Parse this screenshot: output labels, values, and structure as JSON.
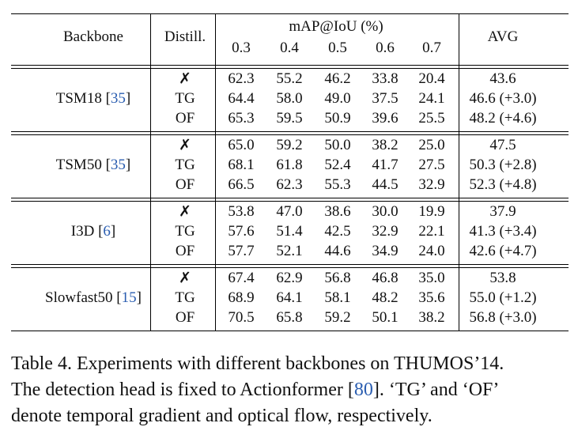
{
  "table": {
    "header": {
      "backbone": "Backbone",
      "distill": "Distill.",
      "metric": "mAP@IoU (%)",
      "thresholds": [
        "0.3",
        "0.4",
        "0.5",
        "0.6",
        "0.7"
      ],
      "avg": "AVG"
    },
    "groups": [
      {
        "backbone": [
          "TSM18 [",
          "35",
          "]"
        ],
        "rows": [
          {
            "distill": "✗",
            "values": [
              "62.3",
              "55.2",
              "46.2",
              "33.8",
              "20.4"
            ],
            "avg": "43.6"
          },
          {
            "distill": "TG",
            "values": [
              "64.4",
              "58.0",
              "49.0",
              "37.5",
              "24.1"
            ],
            "avg": "46.6 (+3.0)"
          },
          {
            "distill": "OF",
            "values": [
              "65.3",
              "59.5",
              "50.9",
              "39.6",
              "25.5"
            ],
            "avg": "48.2 (+4.6)"
          }
        ]
      },
      {
        "backbone": [
          "TSM50 [",
          "35",
          "]"
        ],
        "rows": [
          {
            "distill": "✗",
            "values": [
              "65.0",
              "59.2",
              "50.0",
              "38.2",
              "25.0"
            ],
            "avg": "47.5"
          },
          {
            "distill": "TG",
            "values": [
              "68.1",
              "61.8",
              "52.4",
              "41.7",
              "27.5"
            ],
            "avg": "50.3 (+2.8)"
          },
          {
            "distill": "OF",
            "values": [
              "66.5",
              "62.3",
              "55.3",
              "44.5",
              "32.9"
            ],
            "avg": "52.3 (+4.8)"
          }
        ]
      },
      {
        "backbone": [
          "I3D [",
          "6",
          "]"
        ],
        "rows": [
          {
            "distill": "✗",
            "values": [
              "53.8",
              "47.0",
              "38.6",
              "30.0",
              "19.9"
            ],
            "avg": "37.9"
          },
          {
            "distill": "TG",
            "values": [
              "57.6",
              "51.4",
              "42.5",
              "32.9",
              "22.1"
            ],
            "avg": "41.3 (+3.4)"
          },
          {
            "distill": "OF",
            "values": [
              "57.7",
              "52.1",
              "44.6",
              "34.9",
              "24.0"
            ],
            "avg": "42.6 (+4.7)"
          }
        ]
      },
      {
        "backbone": [
          "Slowfast50 [",
          "15",
          "]"
        ],
        "rows": [
          {
            "distill": "✗",
            "values": [
              "67.4",
              "62.9",
              "56.8",
              "46.8",
              "35.0"
            ],
            "avg": "53.8"
          },
          {
            "distill": "TG",
            "values": [
              "68.9",
              "64.1",
              "58.1",
              "48.2",
              "35.6"
            ],
            "avg": "55.0 (+1.2)"
          },
          {
            "distill": "OF",
            "values": [
              "70.5",
              "65.8",
              "59.2",
              "50.1",
              "38.2"
            ],
            "avg": "56.8 (+3.0)"
          }
        ]
      }
    ]
  },
  "caption": {
    "lines": [
      [
        "Table 4.  Experiments with different backbones on THUMOS’14."
      ],
      [
        "The detection head is fixed to Actionformer [",
        "80",
        "].  ‘TG’ and ‘OF’"
      ],
      [
        "denote temporal gradient and optical flow, respectively."
      ]
    ]
  }
}
